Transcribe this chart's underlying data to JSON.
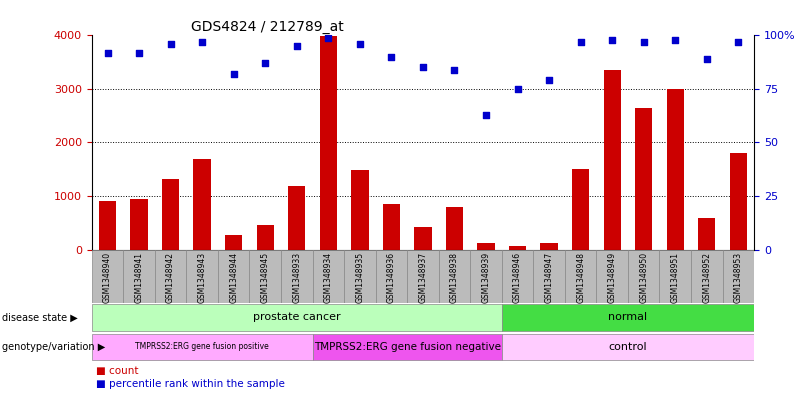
{
  "title": "GDS4824 / 212789_at",
  "samples": [
    "GSM1348940",
    "GSM1348941",
    "GSM1348942",
    "GSM1348943",
    "GSM1348944",
    "GSM1348945",
    "GSM1348933",
    "GSM1348934",
    "GSM1348935",
    "GSM1348936",
    "GSM1348937",
    "GSM1348938",
    "GSM1348939",
    "GSM1348946",
    "GSM1348947",
    "GSM1348948",
    "GSM1348949",
    "GSM1348950",
    "GSM1348951",
    "GSM1348952",
    "GSM1348953"
  ],
  "counts": [
    900,
    950,
    1320,
    1700,
    270,
    450,
    1180,
    3980,
    1480,
    860,
    420,
    800,
    120,
    75,
    130,
    1500,
    3350,
    2650,
    3000,
    580,
    1800
  ],
  "percentiles": [
    92,
    92,
    96,
    97,
    82,
    87,
    95,
    99,
    96,
    90,
    85,
    84,
    63,
    75,
    79,
    97,
    98,
    97,
    98,
    89,
    97
  ],
  "bar_color": "#cc0000",
  "dot_color": "#0000cc",
  "ylim_left": [
    0,
    4000
  ],
  "ylim_right": [
    0,
    100
  ],
  "yticks_left": [
    0,
    1000,
    2000,
    3000,
    4000
  ],
  "yticks_right": [
    0,
    25,
    50,
    75,
    100
  ],
  "disease_groups": [
    {
      "label": "prostate cancer",
      "start": 0,
      "end": 13,
      "color": "#bbffbb"
    },
    {
      "label": "normal",
      "start": 13,
      "end": 21,
      "color": "#44dd44"
    }
  ],
  "geno_groups": [
    {
      "label": "TMPRSS2:ERG gene fusion positive",
      "start": 0,
      "end": 7,
      "color": "#ffaaff"
    },
    {
      "label": "TMPRSS2:ERG gene fusion negative",
      "start": 7,
      "end": 13,
      "color": "#ee55ee"
    },
    {
      "label": "control",
      "start": 13,
      "end": 21,
      "color": "#ffccff"
    }
  ],
  "tick_color_left": "#cc0000",
  "tick_color_right": "#0000cc",
  "xtick_bg": "#bbbbbb",
  "legend_count": "count",
  "legend_pct": "percentile rank within the sample"
}
